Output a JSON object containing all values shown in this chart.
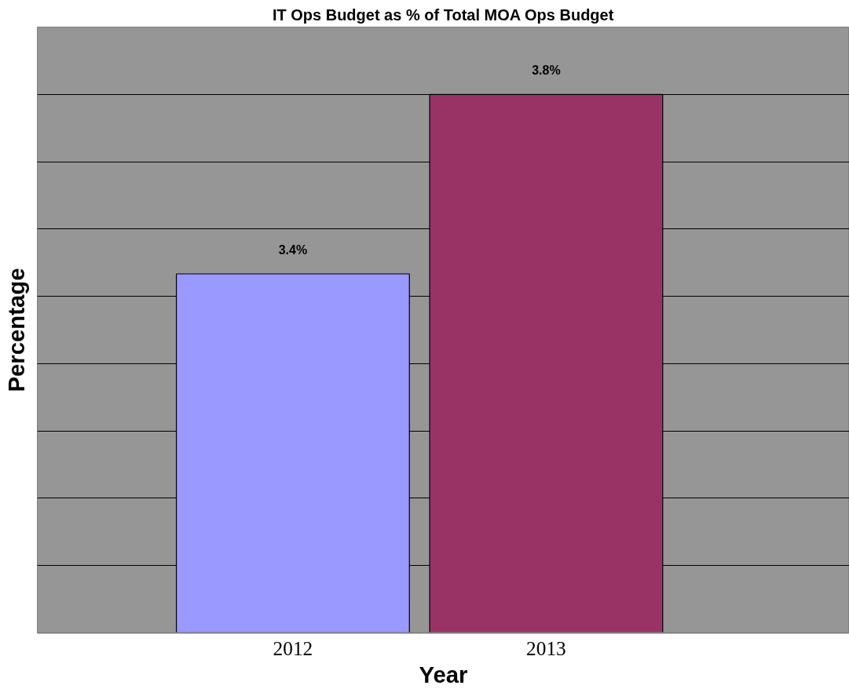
{
  "chart_data": {
    "type": "bar",
    "title": "IT Ops Budget as % of Total MOA Ops Budget",
    "xlabel": "Year",
    "ylabel": "Percentage",
    "categories": [
      "2012",
      "2013"
    ],
    "values": [
      3.4,
      3.8
    ],
    "colors": [
      "#9999ff",
      "#993366"
    ],
    "value_labels": [
      "3.4%",
      "3.8%"
    ],
    "ylim": [
      2.6,
      3.95
    ],
    "yticks": [
      {
        "value": 2.6,
        "label": null
      },
      {
        "value": 2.75,
        "label": null
      },
      {
        "value": 2.9,
        "label": null
      },
      {
        "value": 3.05,
        "label": null
      },
      {
        "value": 3.2,
        "label": null
      },
      {
        "value": 3.35,
        "label": null
      },
      {
        "value": 3.5,
        "label": null
      },
      {
        "value": 3.65,
        "label": null
      },
      {
        "value": 3.8,
        "label": null
      },
      {
        "value": 3.95,
        "label": null
      }
    ],
    "grid": "y",
    "tick_labels": "x"
  }
}
